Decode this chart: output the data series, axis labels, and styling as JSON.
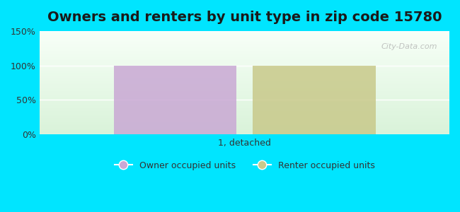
{
  "title": "Owners and renters by unit type in zip code 15780",
  "categories": [
    "1, detached"
  ],
  "owner_values": [
    100
  ],
  "renter_values": [
    100
  ],
  "owner_color": "#c9a8d4",
  "renter_color": "#c8c98a",
  "owner_label": "Owner occupied units",
  "renter_label": "Renter occupied units",
  "ylim": [
    0,
    150
  ],
  "yticks": [
    0,
    50,
    100,
    150
  ],
  "ytick_labels": [
    "0%",
    "50%",
    "100%",
    "150%"
  ],
  "bg_outer": "#00e5ff",
  "watermark": "City-Data.com",
  "bar_width": 0.3,
  "title_fontsize": 14
}
